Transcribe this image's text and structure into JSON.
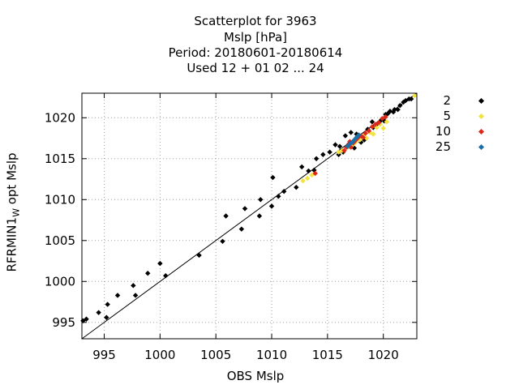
{
  "chart_data": {
    "type": "scatter",
    "title_lines": [
      "Scatterplot for      3963",
      "Mslp [hPa]",
      "Period: 20180601-20180614",
      "Used  12 + 01 02 ... 24"
    ],
    "xlabel": "OBS Mslp",
    "ylabel_main": "RFRMIN1",
    "ylabel_sub": "W",
    "ylabel_rest": " opt Mslp",
    "xlim": [
      993,
      1023
    ],
    "ylim": [
      993,
      1023
    ],
    "xticks": [
      995,
      1000,
      1005,
      1010,
      1015,
      1020
    ],
    "yticks": [
      995,
      1000,
      1005,
      1010,
      1015,
      1020
    ],
    "grid": true,
    "diagonal_line": true,
    "legend_position": "right",
    "series": [
      {
        "name": "2",
        "color": "#000000",
        "x": [
          993.1,
          993.4,
          994.5,
          995.2,
          995.3,
          996.2,
          997.6,
          997.8,
          998.9,
          1000.0,
          1000.5,
          1003.5,
          1005.6,
          1005.9,
          1007.3,
          1007.6,
          1008.9,
          1009.0,
          1010.0,
          1010.1,
          1010.6,
          1011.1,
          1012.2,
          1012.7,
          1013.3,
          1013.8,
          1014.0,
          1014.6,
          1015.2,
          1015.7,
          1016.0,
          1016.1,
          1016.4,
          1016.6,
          1016.9,
          1017.1,
          1017.4,
          1017.6,
          1017.9,
          1018.0,
          1018.3,
          1018.6,
          1019.0,
          1019.1,
          1019.5,
          1019.8,
          1020.1,
          1020.2,
          1020.4,
          1020.6,
          1020.9,
          1021.0,
          1021.3,
          1021.5,
          1021.8,
          1022.0,
          1022.3,
          1022.5
        ],
        "y": [
          995.2,
          995.4,
          996.2,
          995.6,
          997.2,
          998.3,
          999.5,
          998.3,
          1001.0,
          1002.2,
          1000.7,
          1003.2,
          1004.9,
          1008.0,
          1006.4,
          1008.9,
          1008.0,
          1010.0,
          1009.2,
          1012.7,
          1010.4,
          1011.0,
          1011.5,
          1014.0,
          1013.5,
          1013.6,
          1015.0,
          1015.5,
          1015.8,
          1016.7,
          1015.5,
          1016.5,
          1015.8,
          1017.8,
          1016.5,
          1018.2,
          1016.3,
          1018.0,
          1017.6,
          1017.0,
          1017.3,
          1018.6,
          1019.5,
          1018.8,
          1019.3,
          1019.7,
          1019.6,
          1020.4,
          1020.5,
          1020.8,
          1020.7,
          1021.0,
          1021.0,
          1021.5,
          1021.9,
          1022.1,
          1022.3,
          1022.3
        ]
      },
      {
        "name": "5",
        "color": "#f2e33f",
        "x": [
          1012.8,
          1013.2,
          1013.6,
          1016.0,
          1016.3,
          1016.8,
          1017.2,
          1017.5,
          1017.9,
          1018.2,
          1018.5,
          1018.8,
          1019.1,
          1019.4,
          1019.7,
          1020.0,
          1020.3,
          1022.8
        ],
        "y": [
          1012.3,
          1012.6,
          1013.0,
          1015.8,
          1016.0,
          1016.4,
          1016.6,
          1017.0,
          1017.3,
          1017.8,
          1017.5,
          1018.2,
          1018.0,
          1018.8,
          1019.2,
          1018.7,
          1019.5,
          1022.7
        ]
      },
      {
        "name": "10",
        "color": "#e0281a",
        "x": [
          1013.9,
          1016.5,
          1016.7,
          1016.9,
          1017.0,
          1017.1,
          1017.3,
          1017.5,
          1017.7,
          1018.0,
          1018.2,
          1018.4,
          1018.7,
          1019.0,
          1019.3,
          1019.6,
          1019.9,
          1020.2
        ],
        "y": [
          1013.2,
          1016.0,
          1016.4,
          1016.8,
          1017.1,
          1016.4,
          1016.9,
          1017.2,
          1017.5,
          1017.8,
          1017.6,
          1018.1,
          1018.4,
          1018.9,
          1019.2,
          1019.4,
          1019.9,
          1020.1
        ]
      },
      {
        "name": "25",
        "color": "#1a6fa8",
        "x": [
          1016.8,
          1017.0,
          1017.2,
          1017.4,
          1017.6,
          1017.8
        ],
        "y": [
          1016.5,
          1016.8,
          1017.0,
          1017.3,
          1017.6,
          1017.9
        ]
      }
    ]
  }
}
